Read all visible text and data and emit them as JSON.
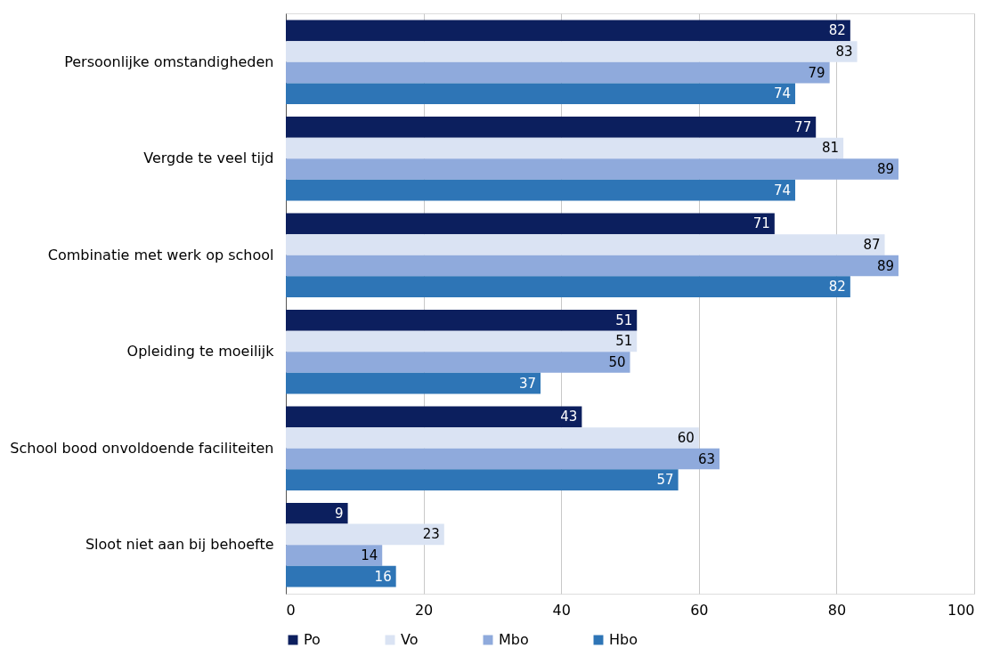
{
  "chart_data": {
    "type": "bar",
    "orientation": "horizontal",
    "categories": [
      "Persoonlijke omstandigheden",
      "Vergde te veel tijd",
      "Combinatie met werk op school",
      "Opleiding te moeilijk",
      "School bood onvoldoende faciliteiten",
      "Sloot niet aan bij behoefte"
    ],
    "series": [
      {
        "name": "Po",
        "color": "#0c1f5e",
        "values": [
          82,
          77,
          71,
          51,
          43,
          9
        ]
      },
      {
        "name": "Vo",
        "color": "#dae3f3",
        "values": [
          83,
          81,
          87,
          51,
          60,
          23
        ]
      },
      {
        "name": "Mbo",
        "color": "#8faadc",
        "values": [
          79,
          89,
          89,
          50,
          63,
          14
        ]
      },
      {
        "name": "Hbo",
        "color": "#2e75b6",
        "values": [
          74,
          74,
          82,
          37,
          57,
          16
        ]
      }
    ],
    "xlim": [
      0,
      100
    ],
    "xticks": [
      0,
      20,
      40,
      60,
      80,
      100
    ],
    "grid": "x",
    "legend": "bottom",
    "data_labels": true
  }
}
